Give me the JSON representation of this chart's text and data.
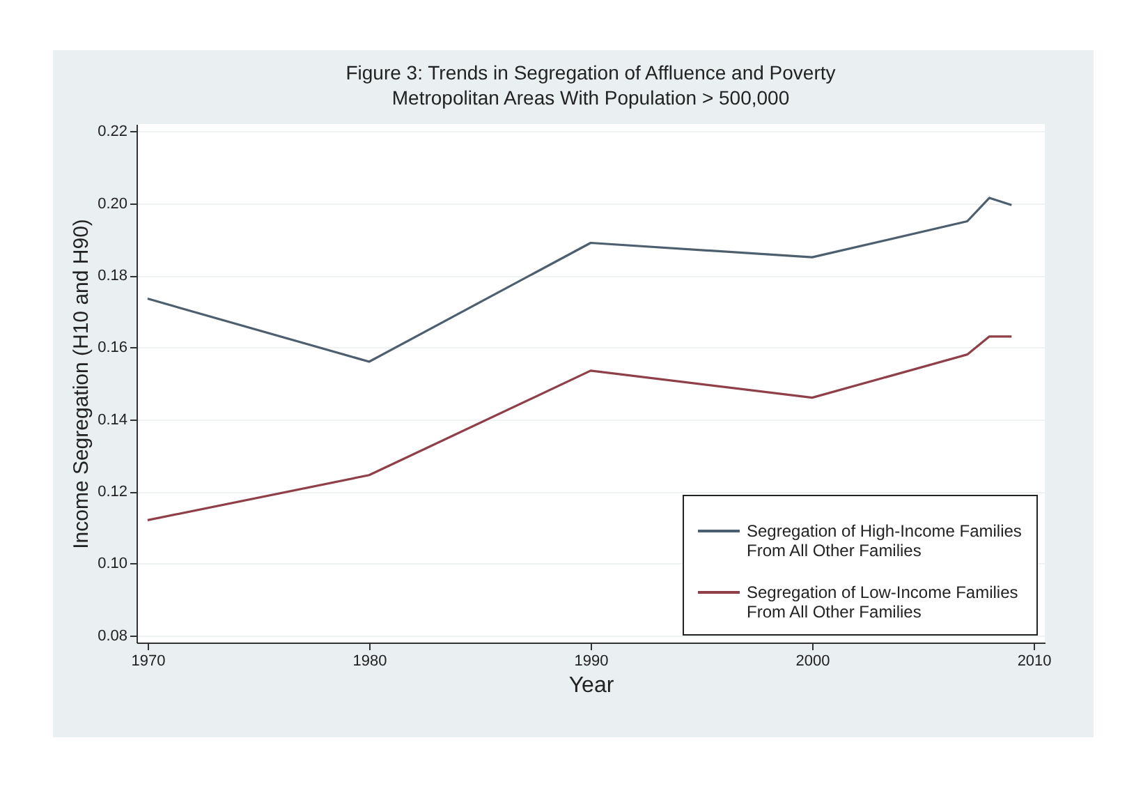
{
  "chart_data": {
    "type": "line",
    "title": "Figure 3: Trends in Segregation of Affluence and Poverty",
    "subtitle": "Metropolitan Areas With Population > 500,000",
    "xlabel": "Year",
    "ylabel": "Income Segregation (H10 and H90)",
    "x": [
      1970,
      1980,
      1990,
      2000,
      2007,
      2008,
      2009
    ],
    "series": [
      {
        "name": "Segregation of High-Income Families From All Other Families",
        "color": "#4d5f6f",
        "values": [
          0.1735,
          0.156,
          0.189,
          0.185,
          0.195,
          0.2015,
          0.1995
        ]
      },
      {
        "name": "Segregation of Low-Income Families From All Other Families",
        "color": "#8e3f48",
        "values": [
          0.112,
          0.1245,
          0.1535,
          0.146,
          0.158,
          0.163,
          0.163
        ]
      }
    ],
    "xlim": [
      1969.5,
      2010.5
    ],
    "xticks": [
      1970,
      1980,
      1990,
      2000,
      2010
    ],
    "ylim": [
      0.078,
      0.222
    ],
    "yticks": [
      0.08,
      {
        "value": 0.1,
        "label": "0.10"
      },
      0.12,
      0.14,
      0.16,
      0.18,
      {
        "value": 0.2,
        "label": "0.20"
      },
      0.22
    ],
    "grid": "y",
    "legend": "bottom right",
    "marker": "none",
    "line_style": "solid"
  }
}
